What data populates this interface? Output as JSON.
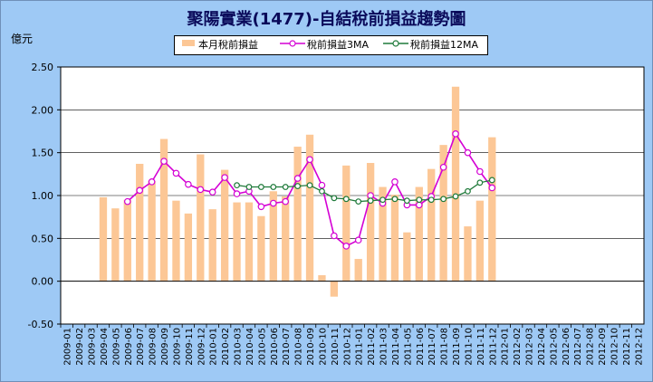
{
  "title": "聚陽實業(1477)-自結稅前損益趨勢圖",
  "unit": "億元",
  "colors": {
    "bar": "#fcc796",
    "ma3": "#d400d4",
    "ma12": "#1f7a3a",
    "plot_bg": "#ffffff",
    "frame_bg": "#9ec9f5"
  },
  "chart_data": {
    "type": "bar",
    "title": "聚陽實業(1477)-自結稅前損益趨勢圖",
    "ylabel": "億元",
    "ylim": [
      -0.5,
      2.5
    ],
    "yticks": [
      "2.50",
      "2.00",
      "1.50",
      "1.00",
      "0.50",
      "0.00",
      "-0.50"
    ],
    "ytick_values": [
      2.5,
      2.0,
      1.5,
      1.0,
      0.5,
      0.0,
      -0.5
    ],
    "grid": true,
    "legend": "top-center",
    "categories": [
      "2009-01",
      "2009-02",
      "2009-03",
      "2009-04",
      "2009-05",
      "2009-06",
      "2009-07",
      "2009-08",
      "2009-09",
      "2009-10",
      "2009-11",
      "2009-12",
      "2010-01",
      "2010-02",
      "2010-03",
      "2010-04",
      "2010-05",
      "2010-06",
      "2010-07",
      "2010-08",
      "2010-09",
      "2010-10",
      "2010-11",
      "2010-12",
      "2011-01",
      "2011-02",
      "2011-03",
      "2011-04",
      "2011-05",
      "2011-06",
      "2011-07",
      "2011-08",
      "2011-09",
      "2011-10",
      "2011-11",
      "2011-12",
      "2012-01",
      "2012-02",
      "2012-03",
      "2012-04",
      "2012-05",
      "2012-06",
      "2012-07",
      "2012-08",
      "2012-09",
      "2012-10",
      "2012-11",
      "2012-12"
    ],
    "series": [
      {
        "name": "本月稅前損益",
        "kind": "bar",
        "values": [
          null,
          null,
          null,
          0.98,
          0.85,
          0.95,
          1.37,
          1.17,
          1.66,
          0.94,
          0.79,
          1.48,
          0.84,
          1.3,
          0.92,
          0.92,
          0.76,
          1.05,
          0.99,
          1.57,
          1.71,
          0.07,
          -0.18,
          1.35,
          0.26,
          1.38,
          1.1,
          1.01,
          0.57,
          1.1,
          1.31,
          1.59,
          2.27,
          0.64,
          0.94,
          1.68,
          null,
          null,
          null,
          null,
          null,
          null,
          null,
          null,
          null,
          null,
          null,
          null
        ]
      },
      {
        "name": "稅前損益3MA",
        "kind": "line",
        "values": [
          null,
          null,
          null,
          null,
          null,
          0.93,
          1.06,
          1.16,
          1.4,
          1.26,
          1.13,
          1.07,
          1.04,
          1.21,
          1.02,
          1.05,
          0.87,
          0.91,
          0.93,
          1.2,
          1.42,
          1.12,
          0.53,
          0.41,
          0.48,
          1.0,
          0.91,
          1.16,
          0.89,
          0.89,
          0.99,
          1.33,
          1.72,
          1.5,
          1.28,
          1.09,
          null,
          null,
          null,
          null,
          null,
          null,
          null,
          null,
          null,
          null,
          null,
          null
        ]
      },
      {
        "name": "稅前損益12MA",
        "kind": "line",
        "values": [
          null,
          null,
          null,
          null,
          null,
          null,
          null,
          null,
          null,
          null,
          null,
          null,
          null,
          null,
          1.12,
          1.1,
          1.1,
          1.1,
          1.1,
          1.11,
          1.12,
          1.05,
          0.97,
          0.96,
          0.93,
          0.94,
          0.95,
          0.96,
          0.94,
          0.95,
          0.95,
          0.96,
          0.99,
          1.05,
          1.15,
          1.18,
          null,
          null,
          null,
          null,
          null,
          null,
          null,
          null,
          null,
          null,
          null,
          null
        ]
      }
    ]
  },
  "legend": [
    {
      "label": "本月稅前損益"
    },
    {
      "label": "稅前損益3MA"
    },
    {
      "label": "稅前損益12MA"
    }
  ]
}
